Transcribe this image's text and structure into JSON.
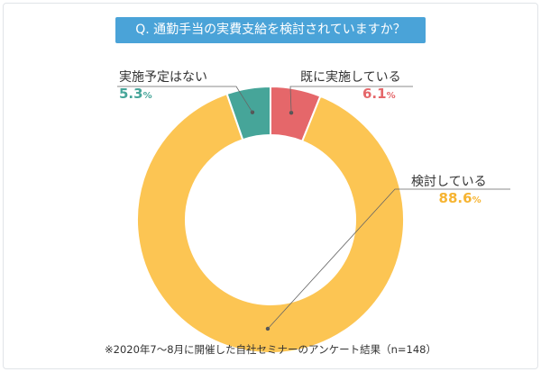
{
  "title": "Q. 通勤手当の実費支給を検討されていますか？",
  "footnote": "※2020年7～8月に開催した自社セミナーのアンケート結果（n=148）",
  "chart_data": {
    "type": "pie",
    "donut": true,
    "unit": "%",
    "slices": [
      {
        "label": "既に実施している",
        "value": 6.1,
        "color": "#e5676a"
      },
      {
        "label": "検討している",
        "value": 88.6,
        "color": "#fcc553"
      },
      {
        "label": "実施予定はない",
        "value": 5.3,
        "color": "#46a599"
      }
    ]
  }
}
